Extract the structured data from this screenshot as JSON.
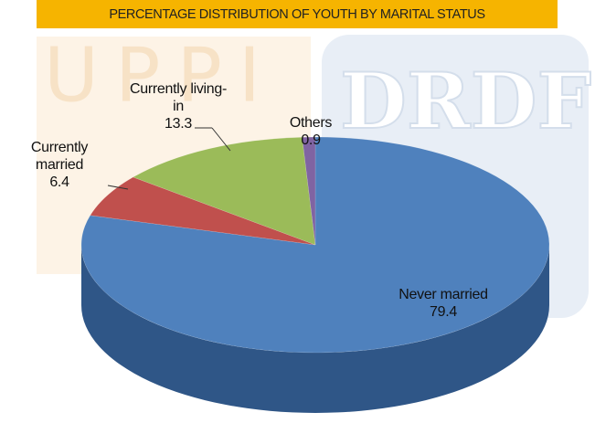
{
  "chart_data": {
    "type": "pie3d",
    "title": "PERCENTAGE DISTRIBUTION OF YOUTH BY MARITAL STATUS",
    "watermarks": [
      "UPPI",
      "DRDF"
    ],
    "categories": [
      "Never married",
      "Currently married",
      "Currently living-in",
      "Others"
    ],
    "values": [
      79.4,
      6.4,
      13.3,
      0.9
    ],
    "colors": [
      "#4f81bd",
      "#c0504d",
      "#9bbb59",
      "#8064a2"
    ],
    "side_colors": [
      "#2f5687",
      "#8a2e2c",
      "#6c8a34",
      "#563f78"
    ]
  }
}
